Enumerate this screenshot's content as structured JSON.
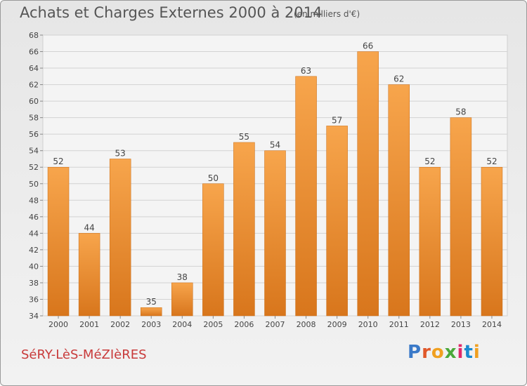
{
  "header": {
    "title": "Achats et Charges Externes 2000 à 2014",
    "subtitle": "(en milliers d'€)"
  },
  "footer": {
    "commune": "SéRY-LèS-MéZIèRES",
    "brand": "Proxiti"
  },
  "colors": {
    "bar_top": "#f7a54c",
    "bar_bottom": "#d8761c",
    "commune_text": "#c83a3a",
    "brand_letters": [
      "#3a79c8",
      "#e0582a",
      "#f0a020",
      "#4aa83a",
      "#e02a6a",
      "#1a8ad0",
      "#f0a020"
    ]
  },
  "chart_data": {
    "type": "bar",
    "title": "Achats et Charges Externes 2000 à 2014",
    "subtitle": "(en milliers d'€)",
    "categories": [
      "2000",
      "2001",
      "2002",
      "2003",
      "2004",
      "2005",
      "2006",
      "2007",
      "2008",
      "2009",
      "2010",
      "2011",
      "2012",
      "2013",
      "2014"
    ],
    "values": [
      52,
      44,
      53,
      35,
      38,
      50,
      55,
      54,
      63,
      57,
      66,
      62,
      52,
      58,
      52
    ],
    "ylim": [
      34,
      68
    ],
    "yticks": [
      34,
      36,
      38,
      40,
      42,
      44,
      46,
      48,
      50,
      52,
      54,
      56,
      58,
      60,
      62,
      64,
      66,
      68
    ],
    "grid": true,
    "legend": "none"
  }
}
